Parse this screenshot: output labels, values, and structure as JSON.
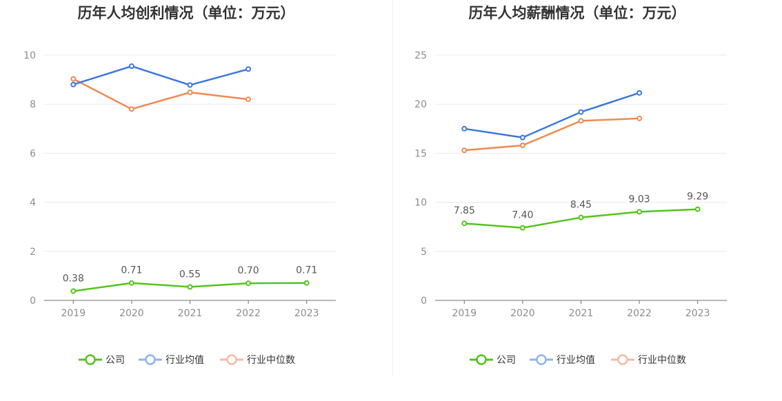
{
  "chart_data": [
    {
      "type": "line",
      "title": "历年人均创利情况（单位：万元）",
      "categories": [
        "2019",
        "2020",
        "2021",
        "2022",
        "2023"
      ],
      "ylim": [
        0,
        10
      ],
      "yticks": [
        0,
        2,
        4,
        6,
        8,
        10
      ],
      "grid": true,
      "legend_position": "bottom",
      "series": [
        {
          "name": "公司",
          "color": "#52c41a",
          "values": [
            0.38,
            0.71,
            0.55,
            0.7,
            0.71
          ],
          "labels": [
            "0.38",
            "0.71",
            "0.55",
            "0.70",
            "0.71"
          ]
        },
        {
          "name": "行业均值",
          "color": "#3a77e0",
          "values": [
            8.8,
            9.55,
            8.78,
            9.43,
            null
          ]
        },
        {
          "name": "行业中位数",
          "color": "#f0894e",
          "values": [
            9.03,
            7.8,
            8.48,
            8.2,
            null
          ]
        }
      ]
    },
    {
      "type": "line",
      "title": "历年人均薪酬情况（单位：万元）",
      "categories": [
        "2019",
        "2020",
        "2021",
        "2022",
        "2023"
      ],
      "ylim": [
        0,
        25
      ],
      "yticks": [
        0,
        5,
        10,
        15,
        20,
        25
      ],
      "grid": true,
      "legend_position": "bottom",
      "series": [
        {
          "name": "公司",
          "color": "#52c41a",
          "values": [
            7.85,
            7.4,
            8.45,
            9.03,
            9.29
          ],
          "labels": [
            "7.85",
            "7.40",
            "8.45",
            "9.03",
            "9.29"
          ]
        },
        {
          "name": "行业均值",
          "color": "#3a77e0",
          "values": [
            17.5,
            16.6,
            19.2,
            21.15,
            null
          ]
        },
        {
          "name": "行业中位数",
          "color": "#f0894e",
          "values": [
            15.3,
            15.8,
            18.3,
            18.55,
            null
          ]
        }
      ]
    }
  ],
  "legend_colors": {
    "公司": "#52c41a",
    "行业均值": "#8fb3ef",
    "行业中位数": "#f7b9a0"
  }
}
